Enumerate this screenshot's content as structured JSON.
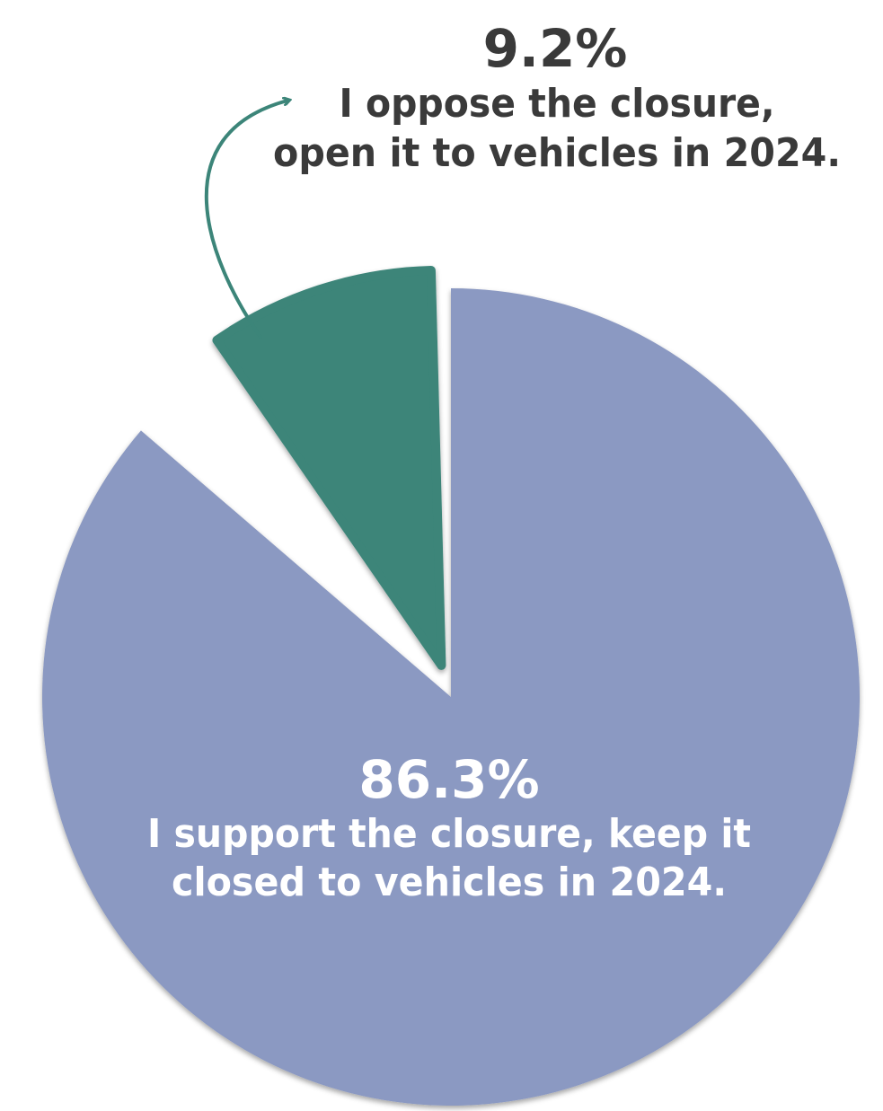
{
  "chart_data": {
    "type": "pie",
    "title": "",
    "slices": [
      {
        "value": 86.3,
        "percent_label": "86.3%",
        "label_lines": [
          "I support the closure, keep it",
          "closed to vehicles in 2024."
        ],
        "color": "#8b99c2"
      },
      {
        "value": 9.2,
        "percent_label": "9.2%",
        "label_lines": [
          "I oppose the closure,",
          "open it to vehicles in 2024."
        ],
        "color": "#3c8579"
      }
    ]
  },
  "colors": {
    "support": "#8b99c2",
    "oppose": "#3c8579",
    "dark_text": "#3a3a3a",
    "light_text": "#ffffff"
  }
}
